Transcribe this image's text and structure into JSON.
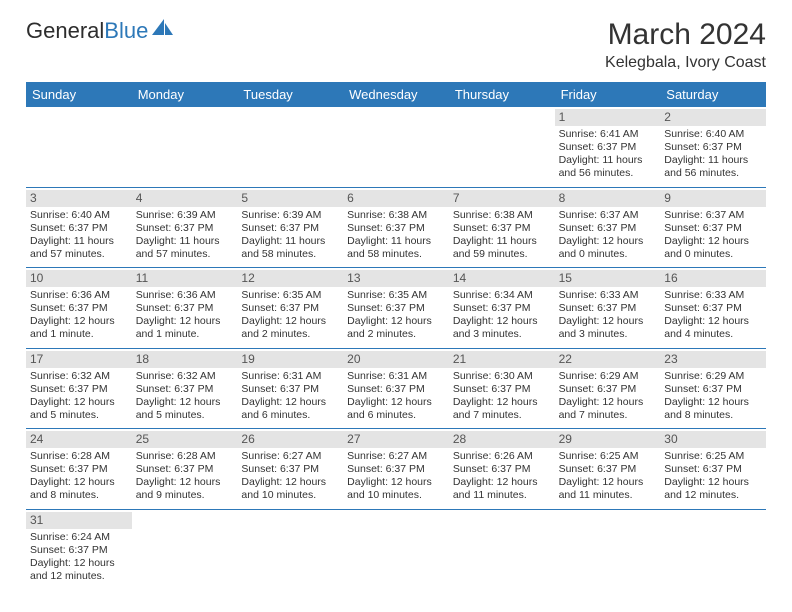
{
  "logo": {
    "part1": "General",
    "part2": "Blue"
  },
  "title": "March 2024",
  "location": "Kelegbala, Ivory Coast",
  "colors": {
    "header_bg": "#2d78b8",
    "header_text": "#ffffff",
    "daynum_bg": "#e4e4e4",
    "week_border": "#2d78b8",
    "text": "#333333"
  },
  "dayNames": [
    "Sunday",
    "Monday",
    "Tuesday",
    "Wednesday",
    "Thursday",
    "Friday",
    "Saturday"
  ],
  "weeks": [
    [
      {
        "n": "",
        "empty": true
      },
      {
        "n": "",
        "empty": true
      },
      {
        "n": "",
        "empty": true
      },
      {
        "n": "",
        "empty": true
      },
      {
        "n": "",
        "empty": true
      },
      {
        "n": "1",
        "sr": "Sunrise: 6:41 AM",
        "ss": "Sunset: 6:37 PM",
        "dl": "Daylight: 11 hours and 56 minutes."
      },
      {
        "n": "2",
        "sr": "Sunrise: 6:40 AM",
        "ss": "Sunset: 6:37 PM",
        "dl": "Daylight: 11 hours and 56 minutes."
      }
    ],
    [
      {
        "n": "3",
        "sr": "Sunrise: 6:40 AM",
        "ss": "Sunset: 6:37 PM",
        "dl": "Daylight: 11 hours and 57 minutes."
      },
      {
        "n": "4",
        "sr": "Sunrise: 6:39 AM",
        "ss": "Sunset: 6:37 PM",
        "dl": "Daylight: 11 hours and 57 minutes."
      },
      {
        "n": "5",
        "sr": "Sunrise: 6:39 AM",
        "ss": "Sunset: 6:37 PM",
        "dl": "Daylight: 11 hours and 58 minutes."
      },
      {
        "n": "6",
        "sr": "Sunrise: 6:38 AM",
        "ss": "Sunset: 6:37 PM",
        "dl": "Daylight: 11 hours and 58 minutes."
      },
      {
        "n": "7",
        "sr": "Sunrise: 6:38 AM",
        "ss": "Sunset: 6:37 PM",
        "dl": "Daylight: 11 hours and 59 minutes."
      },
      {
        "n": "8",
        "sr": "Sunrise: 6:37 AM",
        "ss": "Sunset: 6:37 PM",
        "dl": "Daylight: 12 hours and 0 minutes."
      },
      {
        "n": "9",
        "sr": "Sunrise: 6:37 AM",
        "ss": "Sunset: 6:37 PM",
        "dl": "Daylight: 12 hours and 0 minutes."
      }
    ],
    [
      {
        "n": "10",
        "sr": "Sunrise: 6:36 AM",
        "ss": "Sunset: 6:37 PM",
        "dl": "Daylight: 12 hours and 1 minute."
      },
      {
        "n": "11",
        "sr": "Sunrise: 6:36 AM",
        "ss": "Sunset: 6:37 PM",
        "dl": "Daylight: 12 hours and 1 minute."
      },
      {
        "n": "12",
        "sr": "Sunrise: 6:35 AM",
        "ss": "Sunset: 6:37 PM",
        "dl": "Daylight: 12 hours and 2 minutes."
      },
      {
        "n": "13",
        "sr": "Sunrise: 6:35 AM",
        "ss": "Sunset: 6:37 PM",
        "dl": "Daylight: 12 hours and 2 minutes."
      },
      {
        "n": "14",
        "sr": "Sunrise: 6:34 AM",
        "ss": "Sunset: 6:37 PM",
        "dl": "Daylight: 12 hours and 3 minutes."
      },
      {
        "n": "15",
        "sr": "Sunrise: 6:33 AM",
        "ss": "Sunset: 6:37 PM",
        "dl": "Daylight: 12 hours and 3 minutes."
      },
      {
        "n": "16",
        "sr": "Sunrise: 6:33 AM",
        "ss": "Sunset: 6:37 PM",
        "dl": "Daylight: 12 hours and 4 minutes."
      }
    ],
    [
      {
        "n": "17",
        "sr": "Sunrise: 6:32 AM",
        "ss": "Sunset: 6:37 PM",
        "dl": "Daylight: 12 hours and 5 minutes."
      },
      {
        "n": "18",
        "sr": "Sunrise: 6:32 AM",
        "ss": "Sunset: 6:37 PM",
        "dl": "Daylight: 12 hours and 5 minutes."
      },
      {
        "n": "19",
        "sr": "Sunrise: 6:31 AM",
        "ss": "Sunset: 6:37 PM",
        "dl": "Daylight: 12 hours and 6 minutes."
      },
      {
        "n": "20",
        "sr": "Sunrise: 6:31 AM",
        "ss": "Sunset: 6:37 PM",
        "dl": "Daylight: 12 hours and 6 minutes."
      },
      {
        "n": "21",
        "sr": "Sunrise: 6:30 AM",
        "ss": "Sunset: 6:37 PM",
        "dl": "Daylight: 12 hours and 7 minutes."
      },
      {
        "n": "22",
        "sr": "Sunrise: 6:29 AM",
        "ss": "Sunset: 6:37 PM",
        "dl": "Daylight: 12 hours and 7 minutes."
      },
      {
        "n": "23",
        "sr": "Sunrise: 6:29 AM",
        "ss": "Sunset: 6:37 PM",
        "dl": "Daylight: 12 hours and 8 minutes."
      }
    ],
    [
      {
        "n": "24",
        "sr": "Sunrise: 6:28 AM",
        "ss": "Sunset: 6:37 PM",
        "dl": "Daylight: 12 hours and 8 minutes."
      },
      {
        "n": "25",
        "sr": "Sunrise: 6:28 AM",
        "ss": "Sunset: 6:37 PM",
        "dl": "Daylight: 12 hours and 9 minutes."
      },
      {
        "n": "26",
        "sr": "Sunrise: 6:27 AM",
        "ss": "Sunset: 6:37 PM",
        "dl": "Daylight: 12 hours and 10 minutes."
      },
      {
        "n": "27",
        "sr": "Sunrise: 6:27 AM",
        "ss": "Sunset: 6:37 PM",
        "dl": "Daylight: 12 hours and 10 minutes."
      },
      {
        "n": "28",
        "sr": "Sunrise: 6:26 AM",
        "ss": "Sunset: 6:37 PM",
        "dl": "Daylight: 12 hours and 11 minutes."
      },
      {
        "n": "29",
        "sr": "Sunrise: 6:25 AM",
        "ss": "Sunset: 6:37 PM",
        "dl": "Daylight: 12 hours and 11 minutes."
      },
      {
        "n": "30",
        "sr": "Sunrise: 6:25 AM",
        "ss": "Sunset: 6:37 PM",
        "dl": "Daylight: 12 hours and 12 minutes."
      }
    ],
    [
      {
        "n": "31",
        "sr": "Sunrise: 6:24 AM",
        "ss": "Sunset: 6:37 PM",
        "dl": "Daylight: 12 hours and 12 minutes."
      },
      {
        "n": "",
        "empty": true
      },
      {
        "n": "",
        "empty": true
      },
      {
        "n": "",
        "empty": true
      },
      {
        "n": "",
        "empty": true
      },
      {
        "n": "",
        "empty": true
      },
      {
        "n": "",
        "empty": true
      }
    ]
  ]
}
